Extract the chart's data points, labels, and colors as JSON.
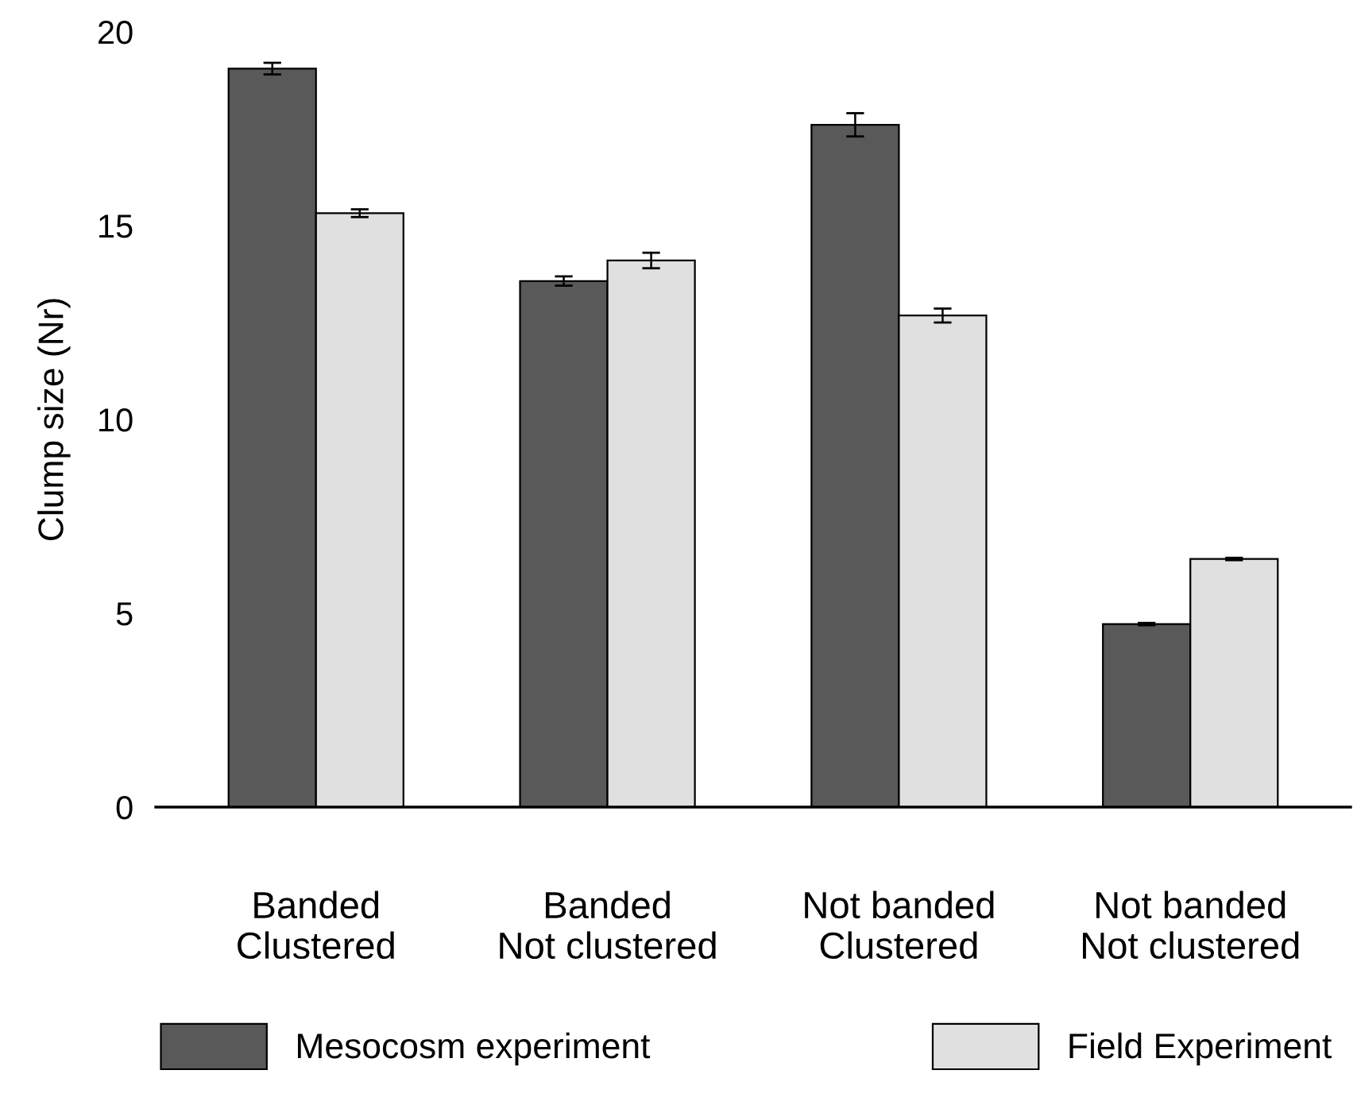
{
  "chart_data": {
    "type": "bar",
    "ylabel": "Clump size (Nr)",
    "categories": [
      "Banded\nClustered",
      "Banded\nNot clustered",
      "Not banded\nClustered",
      "Not banded\nNot clustered"
    ],
    "series": [
      {
        "name": "Mesocosm experiment",
        "color": "#595959",
        "values": [
          19.05,
          13.57,
          17.6,
          4.72
        ],
        "errors": [
          0.15,
          0.12,
          0.3,
          0.03
        ]
      },
      {
        "name": "Field Experiment",
        "color": "#e0e0e0",
        "values": [
          15.32,
          14.1,
          12.68,
          6.4
        ],
        "errors": [
          0.1,
          0.2,
          0.18,
          0.03
        ]
      }
    ],
    "ylim": [
      0,
      20
    ],
    "yticks": [
      0,
      5,
      10,
      15,
      20
    ],
    "grid": false,
    "legend": "bottom"
  }
}
